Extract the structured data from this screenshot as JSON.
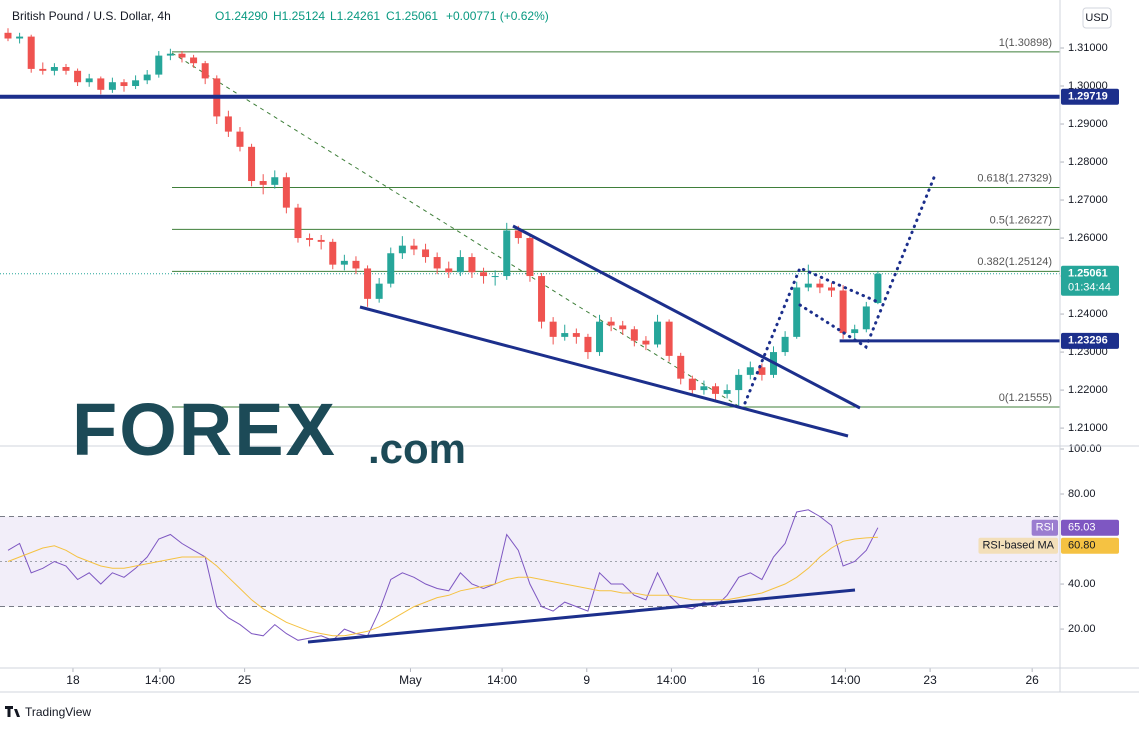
{
  "chart_data": [
    {
      "type": "candlestick",
      "title": "British Pound / U.S. Dollar, 4h",
      "legend_items": [
        "O1.24290",
        "H1.25124",
        "L1.24261",
        "C1.25061",
        "+0.00771 (+0.62%)"
      ],
      "currency": "USD",
      "up_color": "#26a69a",
      "down_color": "#ef5350",
      "ohlc": [
        [
          1.314,
          1.3152,
          1.3118,
          1.3125
        ],
        [
          1.3125,
          1.314,
          1.3112,
          1.313
        ],
        [
          1.313,
          1.3135,
          1.3035,
          1.3045
        ],
        [
          1.3045,
          1.3062,
          1.303,
          1.304
        ],
        [
          1.304,
          1.306,
          1.3028,
          1.305
        ],
        [
          1.305,
          1.3058,
          1.303,
          1.304
        ],
        [
          1.304,
          1.3046,
          1.3,
          1.301
        ],
        [
          1.301,
          1.3032,
          1.2998,
          1.302
        ],
        [
          1.302,
          1.3025,
          1.2978,
          1.299
        ],
        [
          1.299,
          1.3022,
          1.2982,
          1.301
        ],
        [
          1.301,
          1.3018,
          1.2985,
          1.3
        ],
        [
          1.3,
          1.3028,
          1.2992,
          1.3015
        ],
        [
          1.3015,
          1.3042,
          1.3005,
          1.303
        ],
        [
          1.303,
          1.3092,
          1.3022,
          1.308
        ],
        [
          1.308,
          1.3098,
          1.3068,
          1.3085
        ],
        [
          1.3085,
          1.3092,
          1.3062,
          1.3075
        ],
        [
          1.3075,
          1.3082,
          1.3048,
          1.306
        ],
        [
          1.306,
          1.3066,
          1.3005,
          1.302
        ],
        [
          1.302,
          1.3028,
          1.29,
          1.292
        ],
        [
          1.292,
          1.2935,
          1.2866,
          1.288
        ],
        [
          1.288,
          1.2892,
          1.2828,
          1.284
        ],
        [
          1.284,
          1.2848,
          1.2736,
          1.275
        ],
        [
          1.275,
          1.2768,
          1.2715,
          1.274
        ],
        [
          1.274,
          1.2778,
          1.273,
          1.276
        ],
        [
          1.276,
          1.2772,
          1.2665,
          1.268
        ],
        [
          1.268,
          1.269,
          1.2588,
          1.26
        ],
        [
          1.26,
          1.2612,
          1.2578,
          1.2595
        ],
        [
          1.2595,
          1.2608,
          1.257,
          1.259
        ],
        [
          1.259,
          1.2598,
          1.2518,
          1.253
        ],
        [
          1.253,
          1.2556,
          1.2515,
          1.254
        ],
        [
          1.254,
          1.2552,
          1.2505,
          1.252
        ],
        [
          1.252,
          1.2528,
          1.2419,
          1.244
        ],
        [
          1.244,
          1.2495,
          1.243,
          1.248
        ],
        [
          1.248,
          1.2575,
          1.247,
          1.256
        ],
        [
          1.256,
          1.2605,
          1.2545,
          1.258
        ],
        [
          1.258,
          1.2598,
          1.2555,
          1.257
        ],
        [
          1.257,
          1.2585,
          1.2535,
          1.255
        ],
        [
          1.255,
          1.2562,
          1.2505,
          1.252
        ],
        [
          1.252,
          1.2538,
          1.2495,
          1.251
        ],
        [
          1.251,
          1.2568,
          1.25,
          1.255
        ],
        [
          1.255,
          1.256,
          1.2495,
          1.251
        ],
        [
          1.251,
          1.2522,
          1.248,
          1.25
        ],
        [
          1.25,
          1.2515,
          1.2475,
          1.25
        ],
        [
          1.25,
          1.264,
          1.249,
          1.262
        ],
        [
          1.262,
          1.2632,
          1.2585,
          1.26
        ],
        [
          1.26,
          1.261,
          1.2485,
          1.25
        ],
        [
          1.25,
          1.2508,
          1.2362,
          1.238
        ],
        [
          1.238,
          1.2392,
          1.232,
          1.234
        ],
        [
          1.234,
          1.2372,
          1.233,
          1.235
        ],
        [
          1.235,
          1.2362,
          1.2322,
          1.234
        ],
        [
          1.234,
          1.2348,
          1.2282,
          1.23
        ],
        [
          1.23,
          1.2398,
          1.229,
          1.238
        ],
        [
          1.238,
          1.2392,
          1.2355,
          1.237
        ],
        [
          1.237,
          1.2382,
          1.2345,
          1.236
        ],
        [
          1.236,
          1.2368,
          1.2315,
          1.233
        ],
        [
          1.233,
          1.2342,
          1.2305,
          1.232
        ],
        [
          1.232,
          1.2398,
          1.2312,
          1.238
        ],
        [
          1.238,
          1.2386,
          1.2275,
          1.229
        ],
        [
          1.229,
          1.2298,
          1.2215,
          1.223
        ],
        [
          1.223,
          1.2238,
          1.2185,
          1.22
        ],
        [
          1.22,
          1.2225,
          1.2188,
          1.221
        ],
        [
          1.221,
          1.2218,
          1.2172,
          1.219
        ],
        [
          1.219,
          1.2215,
          1.2178,
          1.22
        ],
        [
          1.22,
          1.2255,
          1.2156,
          1.224
        ],
        [
          1.224,
          1.2275,
          1.2228,
          1.226
        ],
        [
          1.226,
          1.227,
          1.2225,
          1.224
        ],
        [
          1.224,
          1.2315,
          1.2232,
          1.23
        ],
        [
          1.23,
          1.2355,
          1.229,
          1.234
        ],
        [
          1.234,
          1.2485,
          1.2335,
          1.247
        ],
        [
          1.247,
          1.253,
          1.246,
          1.248
        ],
        [
          1.248,
          1.2492,
          1.2455,
          1.247
        ],
        [
          1.247,
          1.2482,
          1.2445,
          1.2462
        ],
        [
          1.2462,
          1.2476,
          1.2335,
          1.235
        ],
        [
          1.235,
          1.2372,
          1.233,
          1.236
        ],
        [
          1.236,
          1.2432,
          1.2352,
          1.242
        ],
        [
          1.2429,
          1.25124,
          1.24261,
          1.25061
        ]
      ],
      "xlim": [
        -0.69,
        90.7
      ],
      "xticks": [
        {
          "value": 5.6,
          "label": "18"
        },
        {
          "value": 13.1,
          "label": "14:00"
        },
        {
          "value": 20.4,
          "label": "25"
        },
        {
          "value": 34.7,
          "label": "May"
        },
        {
          "value": 42.6,
          "label": "14:00"
        },
        {
          "value": 49.9,
          "label": "9"
        },
        {
          "value": 57.2,
          "label": "14:00"
        },
        {
          "value": 64.7,
          "label": "16"
        },
        {
          "value": 72.2,
          "label": "14:00"
        },
        {
          "value": 79.5,
          "label": "23"
        },
        {
          "value": 88.3,
          "label": "26"
        }
      ],
      "ylim": [
        1.20555,
        1.32263
      ],
      "yticks": [
        {
          "value": 1.21,
          "label": "1.21000"
        },
        {
          "value": 1.22,
          "label": "1.22000"
        },
        {
          "value": 1.23,
          "label": "1.23000"
        },
        {
          "value": 1.24,
          "label": "1.24000"
        },
        {
          "value": 1.25,
          "label": "1.25000"
        },
        {
          "value": 1.26,
          "label": "1.26000"
        },
        {
          "value": 1.27,
          "label": "1.27000"
        },
        {
          "value": 1.28,
          "label": "1.28000"
        },
        {
          "value": 1.29,
          "label": "1.29000"
        },
        {
          "value": 1.3,
          "label": "1.30000"
        },
        {
          "value": 1.31,
          "label": "1.31000"
        }
      ],
      "fib_color": "#3f7f3a",
      "fib_levels": [
        {
          "value": 1.30898,
          "label": "1(1.30898)"
        },
        {
          "value": 1.27329,
          "label": "0.618(1.27329)"
        },
        {
          "value": 1.26227,
          "label": "0.5(1.26227)"
        },
        {
          "value": 1.25124,
          "label": "0.382(1.25124)"
        },
        {
          "value": 1.21555,
          "label": "0(1.21555)"
        }
      ],
      "horizontal_lines": [
        {
          "value": 1.29719,
          "label": "1.29719",
          "color": "#1c2f8c"
        },
        {
          "value": 1.23296,
          "label": "1.23296",
          "color": "#1c2f8c"
        }
      ],
      "last_price_label": "1.25061",
      "countdown": "01:34:44"
    },
    {
      "type": "line",
      "series": [
        {
          "name": "RSI",
          "color": "#7e57c2",
          "value_label": "65.03",
          "values": [
            55,
            58,
            45,
            47,
            50,
            48,
            42,
            45,
            40,
            45,
            43,
            47,
            52,
            60,
            62,
            58,
            55,
            52,
            30,
            25,
            22,
            18,
            17,
            22,
            18,
            15,
            16,
            17,
            15,
            20,
            18,
            17,
            28,
            42,
            45,
            43,
            40,
            38,
            37,
            45,
            40,
            38,
            40,
            62,
            55,
            40,
            30,
            28,
            32,
            30,
            28,
            45,
            40,
            40,
            35,
            33,
            45,
            35,
            30,
            29,
            32,
            30,
            35,
            43,
            45,
            42,
            52,
            58,
            72,
            73,
            70,
            66,
            48,
            50,
            55,
            65.03
          ]
        },
        {
          "name": "RSI-based MA",
          "color": "#f5c242",
          "value_label": "60.80",
          "values": [
            50,
            52,
            54,
            56,
            57,
            55,
            52,
            50,
            48,
            47,
            47,
            48,
            49,
            50,
            51,
            52,
            52,
            52,
            48,
            43,
            38,
            33,
            29,
            26,
            23,
            21,
            19,
            18,
            17,
            17,
            18,
            19,
            21,
            24,
            27,
            30,
            32,
            34,
            35,
            37,
            38,
            39,
            40,
            42,
            43,
            43,
            42,
            41,
            40,
            39,
            38,
            37,
            37,
            36,
            36,
            35,
            35,
            35,
            34,
            33,
            33,
            33,
            33,
            34,
            35,
            36,
            38,
            40,
            43,
            47,
            52,
            56,
            59,
            60,
            60.5,
            60.8
          ]
        }
      ],
      "ylim": [
        2.7,
        100
      ],
      "yticks": [
        {
          "value": 20,
          "label": "20.00"
        },
        {
          "value": 40,
          "label": "40.00"
        },
        {
          "value": 80,
          "label": "80.00"
        },
        {
          "value": 100,
          "label": "100.00"
        }
      ],
      "bands": [
        30,
        70
      ],
      "midline": 50
    }
  ],
  "logo": {
    "main": "FOREX",
    "suffix": ".com"
  },
  "footer": "TradingView"
}
